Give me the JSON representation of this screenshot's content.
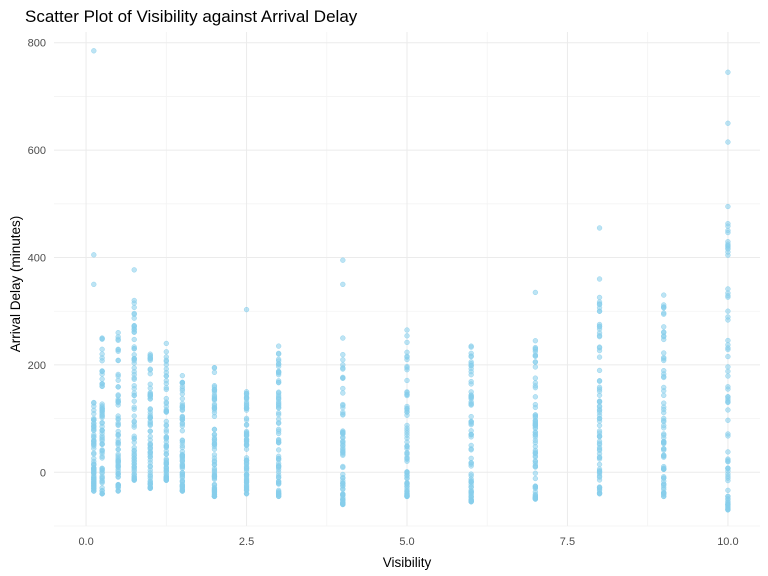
{
  "chart_data": {
    "type": "scatter",
    "title": "Scatter Plot of Visibility against Arrival Delay",
    "xlabel": "Visibility",
    "ylabel": "Arrival Delay (minutes)",
    "xlim": [
      -0.5,
      10.5
    ],
    "ylim": [
      -100,
      820
    ],
    "x_ticks": [
      0.0,
      2.5,
      5.0,
      7.5,
      10.0
    ],
    "x_tick_labels": [
      "0.0",
      "2.5",
      "5.0",
      "7.5",
      "10.0"
    ],
    "y_ticks": [
      0,
      200,
      400,
      600,
      800
    ],
    "y_tick_labels": [
      "0",
      "200",
      "400",
      "600",
      "800"
    ],
    "grid": true,
    "point_color": "#87ceeb",
    "columns": [
      {
        "x": 0.12,
        "min": -35,
        "max": 130,
        "outliers": [
          785,
          405,
          350
        ]
      },
      {
        "x": 0.25,
        "min": -40,
        "max": 250,
        "outliers": []
      },
      {
        "x": 0.5,
        "min": -35,
        "max": 260,
        "outliers": []
      },
      {
        "x": 0.75,
        "min": -15,
        "max": 320,
        "outliers": [
          377
        ]
      },
      {
        "x": 1.0,
        "min": -30,
        "max": 220,
        "outliers": []
      },
      {
        "x": 1.25,
        "min": -15,
        "max": 240,
        "outliers": []
      },
      {
        "x": 1.5,
        "min": -35,
        "max": 180,
        "outliers": []
      },
      {
        "x": 2.0,
        "min": -45,
        "max": 195,
        "outliers": []
      },
      {
        "x": 2.5,
        "min": -40,
        "max": 150,
        "outliers": [
          303
        ]
      },
      {
        "x": 3.0,
        "min": -45,
        "max": 235,
        "outliers": []
      },
      {
        "x": 4.0,
        "min": -60,
        "max": 250,
        "outliers": [
          395,
          350
        ]
      },
      {
        "x": 5.0,
        "min": -45,
        "max": 265,
        "outliers": []
      },
      {
        "x": 6.0,
        "min": -55,
        "max": 235,
        "outliers": []
      },
      {
        "x": 7.0,
        "min": -50,
        "max": 245,
        "outliers": [
          335
        ]
      },
      {
        "x": 8.0,
        "min": -40,
        "max": 360,
        "outliers": [
          455
        ]
      },
      {
        "x": 9.0,
        "min": -45,
        "max": 330,
        "outliers": []
      },
      {
        "x": 10.0,
        "min": -70,
        "max": 495,
        "outliers": [
          745,
          650,
          615
        ]
      }
    ]
  }
}
